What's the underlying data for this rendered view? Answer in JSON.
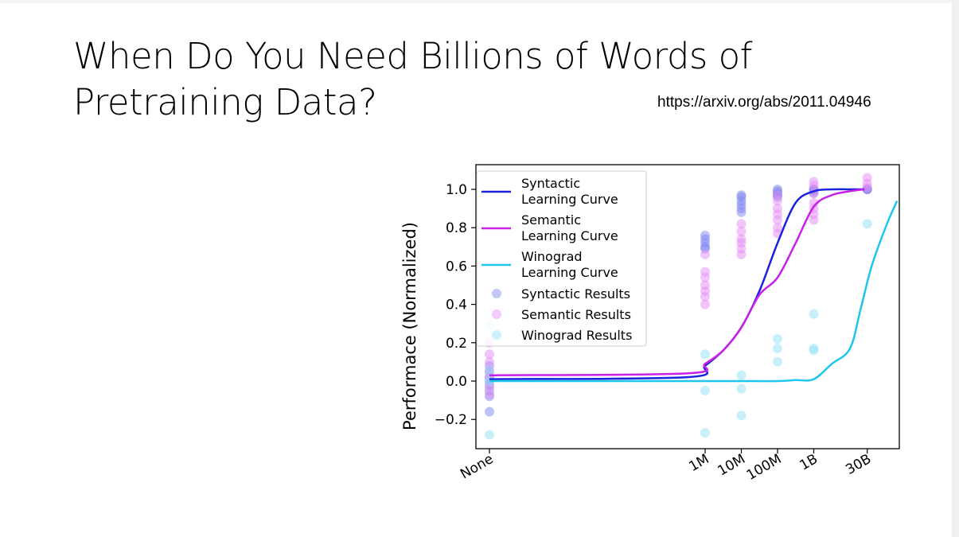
{
  "slide": {
    "title_line1": "When Do You Need Billions of Words of",
    "title_line2": "Pretraining Data?",
    "link": "https://arxiv.org/abs/2011.04946"
  },
  "chart_data": {
    "type": "line",
    "ylabel": "Performace (Normalized)",
    "xlabel": "",
    "x_categories": [
      "None",
      "1M",
      "10M",
      "100M",
      "1B",
      "30B"
    ],
    "x_log_exponents": [
      null,
      6,
      7,
      8,
      9,
      10.477
    ],
    "ylim": [
      -0.3,
      1.1
    ],
    "yticks": [
      1.0,
      0.8,
      0.6,
      0.4,
      0.2,
      0.0,
      -0.2
    ],
    "ytick_labels": [
      "1.0",
      "0.8",
      "0.6",
      "0.4",
      "0.2",
      "0.0",
      "−0.2"
    ],
    "grid": false,
    "legend_position": "top-left",
    "legend": {
      "syntactic_curve": [
        "Syntactic",
        "Learning Curve"
      ],
      "semantic_curve": [
        "Semantic",
        "Learning Curve"
      ],
      "winograd_curve": [
        "Winograd",
        "Learning Curve"
      ],
      "syntactic_results": "Syntactic Results",
      "semantic_results": "Semantic Results",
      "winograd_results": "Winograd Results"
    },
    "colors": {
      "syntactic": "#1a22dd",
      "semantic": "#c91fe8",
      "winograd": "#1ec6ee",
      "syntactic_points": "#7d86f0",
      "semantic_points": "#e58cf5",
      "winograd_points": "#8fe2f7"
    },
    "curves": [
      {
        "key": "syntactic",
        "points": [
          [
            5.5,
            0.02
          ],
          [
            6.0,
            0.08
          ],
          [
            6.5,
            0.16
          ],
          [
            7.0,
            0.28
          ],
          [
            7.5,
            0.47
          ],
          [
            8.0,
            0.72
          ],
          [
            8.5,
            0.93
          ],
          [
            9.0,
            0.99
          ],
          [
            9.5,
            1.0
          ],
          [
            10.0,
            1.0
          ],
          [
            10.4,
            1.0
          ]
        ],
        "at_none": 0.01
      },
      {
        "key": "semantic",
        "points": [
          [
            5.5,
            0.04
          ],
          [
            6.0,
            0.09
          ],
          [
            6.5,
            0.16
          ],
          [
            7.0,
            0.28
          ],
          [
            7.5,
            0.45
          ],
          [
            8.0,
            0.54
          ],
          [
            8.5,
            0.72
          ],
          [
            9.0,
            0.91
          ],
          [
            9.5,
            0.97
          ],
          [
            10.0,
            0.99
          ],
          [
            10.4,
            1.0
          ]
        ],
        "at_none": 0.03
      },
      {
        "key": "winograd",
        "points": [
          [
            5.5,
            0.0
          ],
          [
            6.0,
            0.0
          ],
          [
            7.0,
            0.0
          ],
          [
            8.0,
            0.0
          ],
          [
            8.5,
            0.005
          ],
          [
            9.0,
            0.01
          ],
          [
            9.5,
            0.09
          ],
          [
            10.0,
            0.17
          ],
          [
            10.3,
            0.38
          ],
          [
            10.6,
            0.6
          ],
          [
            11.0,
            0.81
          ],
          [
            11.3,
            0.94
          ]
        ],
        "at_none": 0.0
      }
    ],
    "scatter": [
      {
        "key": "syntactic",
        "points": {
          "None": [
            0.08,
            0.05,
            0.02,
            0.0,
            -0.02,
            -0.05,
            -0.08,
            -0.16
          ],
          "1M": [
            0.76,
            0.74,
            0.72,
            0.7,
            0.69
          ],
          "10M": [
            0.97,
            0.96,
            0.94,
            0.92,
            0.9,
            0.88
          ],
          "100M": [
            1.0,
            0.99,
            0.98,
            0.97,
            0.96
          ],
          "1B": [
            1.0,
            1.0,
            0.99,
            0.98
          ],
          "30B": [
            1.0,
            1.0,
            1.0
          ]
        }
      },
      {
        "key": "semantic",
        "points": {
          "None": [
            0.2,
            0.14,
            0.1,
            0.05,
            0.02,
            -0.03,
            -0.07
          ],
          "1M": [
            0.66,
            0.57,
            0.54,
            0.5,
            0.47,
            0.44,
            0.4
          ],
          "10M": [
            0.82,
            0.78,
            0.74,
            0.72,
            0.69,
            0.66
          ],
          "100M": [
            0.97,
            0.94,
            0.9,
            0.87,
            0.84,
            0.8,
            0.77
          ],
          "1B": [
            1.04,
            1.02,
            0.98,
            0.93,
            0.9,
            0.87,
            0.84
          ],
          "30B": [
            1.06,
            1.03,
            1.01
          ]
        }
      },
      {
        "key": "winograd",
        "points": {
          "None": [
            0.29,
            0.05,
            0.0,
            -0.28
          ],
          "1M": [
            0.14,
            -0.05,
            -0.27
          ],
          "10M": [
            0.03,
            -0.04,
            -0.18
          ],
          "100M": [
            0.22,
            0.17,
            0.1
          ],
          "1B": [
            0.35,
            0.17,
            0.16
          ],
          "30B": [
            0.82
          ]
        }
      }
    ]
  }
}
